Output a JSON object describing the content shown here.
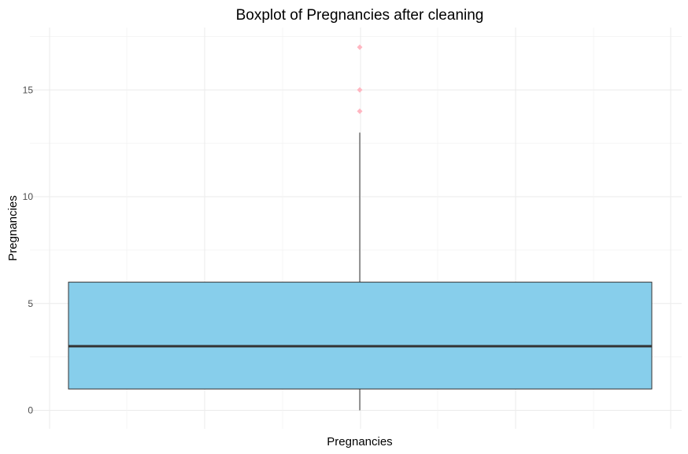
{
  "chart_data": {
    "type": "boxplot",
    "title": "Boxplot of Pregnancies after cleaning",
    "xlabel": "Pregnancies",
    "ylabel": "Pregnancies",
    "ylim": [
      -1,
      18
    ],
    "y_ticks": [
      0,
      5,
      10,
      15
    ],
    "grid": true,
    "legend": "none",
    "box": {
      "min": 0,
      "q1": 1,
      "median": 3,
      "q3": 6,
      "max": 13,
      "outliers": [
        14,
        15,
        17
      ]
    },
    "colors": {
      "box_fill": "#87CEEB",
      "box_outline": "#333333",
      "median_line": "#333333",
      "whisker": "#333333",
      "outlier": "#FFB6C1",
      "grid": "#EBEBEB",
      "tick_label": "#4D4D4D"
    }
  }
}
